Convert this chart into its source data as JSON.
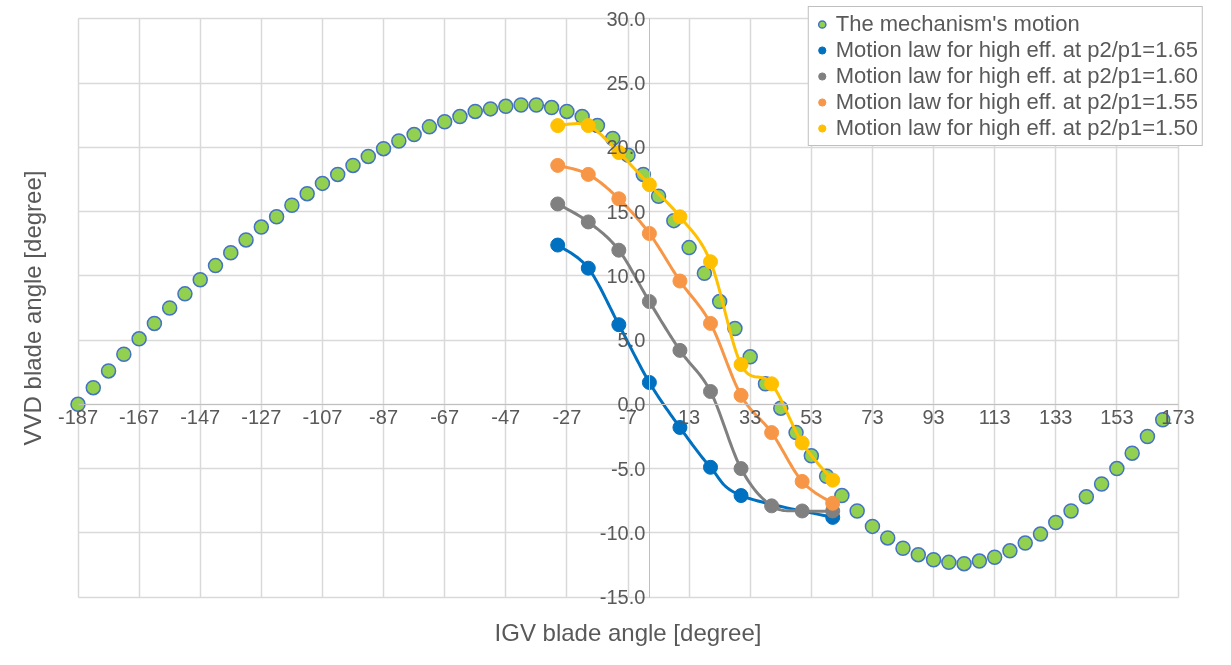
{
  "chart_data": {
    "type": "scatter",
    "xlabel": "IGV blade angle [degree]",
    "ylabel": "VVD blade angle [degree]",
    "xlim": [
      -187,
      173
    ],
    "xticks": [
      -187,
      -167,
      -147,
      -127,
      -107,
      -87,
      -67,
      -47,
      -27,
      -7,
      13,
      33,
      53,
      73,
      93,
      113,
      133,
      153,
      173
    ],
    "ylim": [
      -15,
      30
    ],
    "yticks": [
      {
        "value": -15,
        "label": "-15.0"
      },
      {
        "value": -10,
        "label": "-10.0"
      },
      {
        "value": -5,
        "label": "-5.0"
      },
      {
        "value": 0,
        "label": "0.0"
      },
      {
        "value": 5,
        "label": "5.0"
      },
      {
        "value": 10,
        "label": "10.0"
      },
      {
        "value": 15,
        "label": "15.0"
      },
      {
        "value": 20,
        "label": "20.0"
      },
      {
        "value": 25,
        "label": "25.0"
      },
      {
        "value": 30,
        "label": "30.0"
      }
    ],
    "grid": true,
    "legend": "top right",
    "marker": "circle",
    "line_style": "solid",
    "series": [
      {
        "name": "The mechanism's motion",
        "type": "scatter",
        "color": "#92d050",
        "x": [
          -187,
          -182,
          -177,
          -172,
          -167,
          -162,
          -157,
          -152,
          -147,
          -142,
          -137,
          -132,
          -127,
          -122,
          -117,
          -112,
          -107,
          -102,
          -97,
          -92,
          -87,
          -82,
          -77,
          -72,
          -67,
          -62,
          -57,
          -52,
          -47,
          -42,
          -37,
          -32,
          -27,
          -22,
          -17,
          -12,
          -7,
          -2,
          3,
          8,
          13,
          18,
          23,
          28,
          33,
          38,
          43,
          48,
          53,
          58,
          63,
          68,
          73,
          78,
          83,
          88,
          93,
          98,
          103,
          108,
          113,
          118,
          123,
          128,
          133,
          138,
          143,
          148,
          153,
          158,
          163,
          168
        ],
        "values": [
          0.0,
          1.3,
          2.6,
          3.9,
          5.1,
          6.3,
          7.5,
          8.6,
          9.7,
          10.8,
          11.8,
          12.8,
          13.8,
          14.6,
          15.5,
          16.4,
          17.2,
          17.9,
          18.6,
          19.3,
          19.9,
          20.5,
          21.0,
          21.6,
          22.0,
          22.4,
          22.8,
          23.0,
          23.2,
          23.3,
          23.3,
          23.1,
          22.8,
          22.4,
          21.7,
          20.7,
          19.4,
          17.9,
          16.2,
          14.3,
          12.2,
          10.2,
          8.0,
          5.9,
          3.7,
          1.6,
          -0.3,
          -2.2,
          -4.0,
          -5.6,
          -7.1,
          -8.3,
          -9.5,
          -10.4,
          -11.2,
          -11.7,
          -12.1,
          -12.3,
          -12.4,
          -12.2,
          -11.9,
          -11.4,
          -10.8,
          -10.1,
          -9.2,
          -8.3,
          -7.2,
          -6.2,
          -5.0,
          -3.8,
          -2.5,
          -1.2
        ]
      },
      {
        "name": "Motion law for high eff. at p2/p1=1.65",
        "type": "line",
        "color": "#0070c0",
        "x": [
          -30,
          -20,
          -10,
          0,
          10,
          20,
          30,
          60
        ],
        "values": [
          12.4,
          10.6,
          6.2,
          1.7,
          -1.8,
          -4.9,
          -7.1,
          -8.8
        ]
      },
      {
        "name": "Motion law for high eff. at p2/p1=1.60",
        "type": "line",
        "color": "#808080",
        "x": [
          -30,
          -20,
          -10,
          0,
          10,
          20,
          30,
          40,
          50,
          60
        ],
        "values": [
          15.6,
          14.2,
          12.0,
          8.0,
          4.2,
          1.0,
          -5.0,
          -7.9,
          -8.3,
          -8.3
        ]
      },
      {
        "name": "Motion law for high eff. at p2/p1=1.55",
        "type": "line",
        "color": "#f79646",
        "x": [
          -30,
          -20,
          -10,
          0,
          10,
          20,
          30,
          40,
          50,
          60
        ],
        "values": [
          18.6,
          17.9,
          16.0,
          13.3,
          9.6,
          6.3,
          0.7,
          -2.2,
          -6.0,
          -7.7
        ]
      },
      {
        "name": "Motion law for high eff. at p2/p1=1.50",
        "type": "line",
        "color": "#ffc000",
        "x": [
          -30,
          -20,
          -10,
          0,
          10,
          20,
          30,
          40,
          50,
          60
        ],
        "values": [
          21.7,
          21.7,
          19.6,
          17.1,
          14.6,
          11.1,
          3.1,
          1.6,
          -3.0,
          -5.9
        ]
      }
    ]
  }
}
